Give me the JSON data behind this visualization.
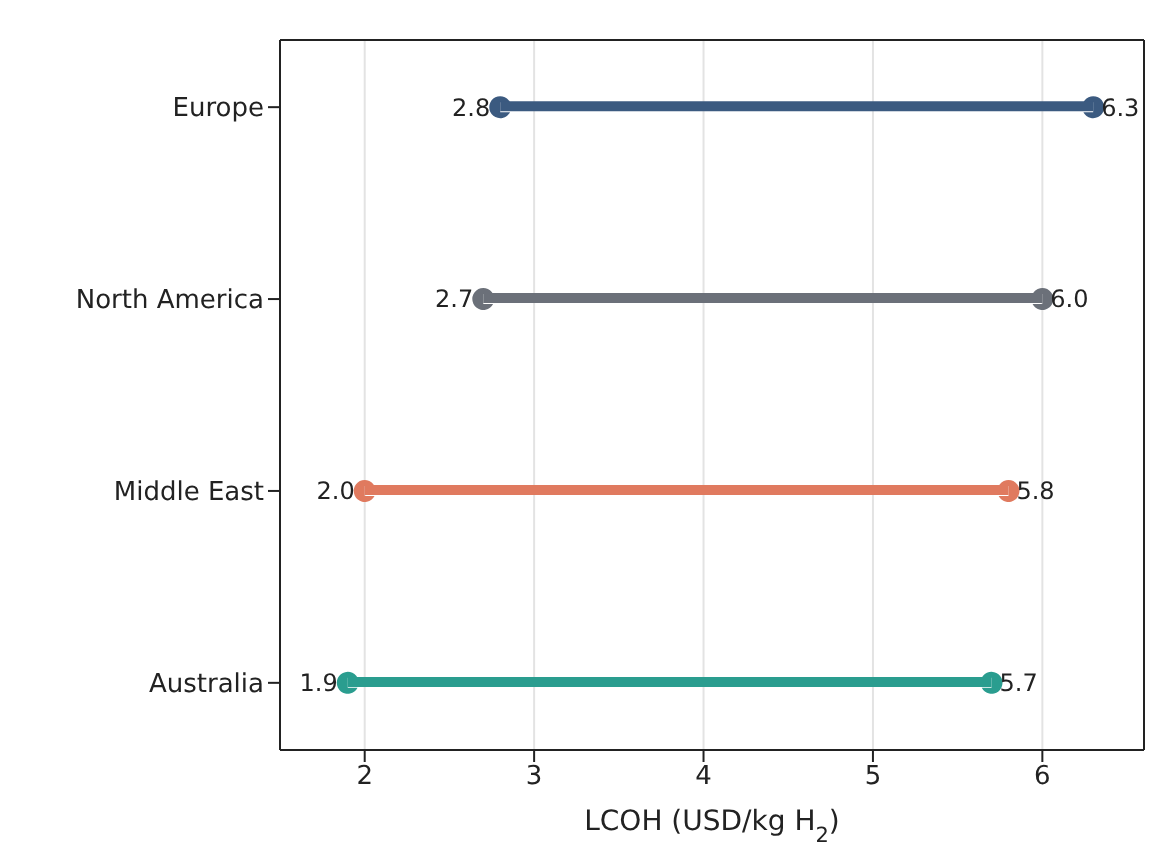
{
  "chart_data": {
    "type": "bar",
    "orientation": "horizontal",
    "categories": [
      "Europe",
      "North America",
      "Middle East",
      "Australia"
    ],
    "series": [
      {
        "base": [
          2.8,
          2.7,
          2.0,
          1.9
        ],
        "values": [
          3.5,
          3.3,
          3.8,
          3.8
        ],
        "colors": [
          "#3b5a80",
          "#6b7079",
          "#e07a5f",
          "#2a9d8f"
        ]
      },
      {
        "type": "scatter",
        "values": [
          2.8,
          2.7,
          2.0,
          1.9
        ],
        "colors": [
          "#3b5a80",
          "#6b7079",
          "#e07a5f",
          "#2a9d8f"
        ],
        "value_labels": [
          "2.8",
          "2.7",
          "2.0",
          "1.9"
        ]
      },
      {
        "type": "scatter",
        "values": [
          6.3,
          6.0,
          5.8,
          5.7
        ],
        "colors": [
          "#3b5a80",
          "#6b7079",
          "#e07a5f",
          "#2a9d8f"
        ],
        "value_labels": [
          "6.3",
          "6.0",
          "5.8",
          "5.7"
        ]
      }
    ],
    "xlabel": "LCOH (USD/kg H$_{2}$)",
    "xlim": [
      1.5,
      6.6
    ],
    "xticks": [
      2,
      3,
      4,
      5,
      6
    ],
    "grid": "x",
    "marker": "circle"
  }
}
